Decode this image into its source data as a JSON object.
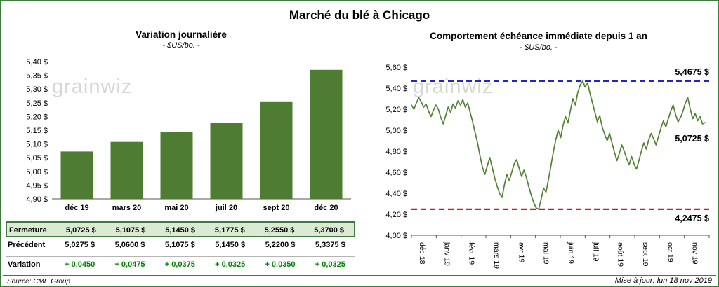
{
  "header": {
    "title": "Marché du blé à Chicago"
  },
  "footer": {
    "source": "Source: CME Group",
    "updated": "Mise à jour: lun 18 nov 2019"
  },
  "watermark": "grainwiz",
  "colors": {
    "frame_green": "#3e7b3e",
    "bar_green": "#4e7c32",
    "line_green": "#538135",
    "high_blue": "#2323cd",
    "low_red": "#e91212",
    "variation_green": "#008000",
    "fermeture_row_bg": "#dce9d3",
    "watermark_gray": "#a9b2a9"
  },
  "chart_data": [
    {
      "type": "bar",
      "title": "Variation  journalière",
      "subtitle": "- $US/bo. -",
      "categories": [
        "déc 19",
        "mars 20",
        "mai 20",
        "juil 20",
        "sept 20",
        "déc 20"
      ],
      "values": [
        5.0725,
        5.1075,
        5.145,
        5.1775,
        5.255,
        5.37
      ],
      "ylim": [
        4.9,
        5.4
      ],
      "ytick_step": 0.05,
      "ytick_labels": [
        "5,40 $",
        "5,35 $",
        "5,30 $",
        "5,25 $",
        "5,20 $",
        "5,15 $",
        "5,10 $",
        "5,05 $",
        "5,00 $",
        "4,95 $",
        "4,90 $"
      ],
      "grid": false,
      "legend": false
    },
    {
      "type": "line",
      "title": "Comportement  échéance  immédiate  depuis 1 an",
      "subtitle": "- $US/bo. -",
      "x_labels": [
        "déc 18",
        "janv 19",
        "févr 19",
        "mars 19",
        "avr 19",
        "mai 19",
        "juin 19",
        "juil 19",
        "août 19",
        "sept 19",
        "oct 19",
        "nov 19"
      ],
      "ylim": [
        4.0,
        5.6
      ],
      "ytick_labels": [
        "5,60 $",
        "5,40 $",
        "5,20 $",
        "5,00 $",
        "4,80 $",
        "4,60 $",
        "4,40 $",
        "4,20 $",
        "4,00 $"
      ],
      "high_line": {
        "value": 5.4675,
        "label": "5,4675 $"
      },
      "low_line": {
        "value": 4.2475,
        "label": "4,2475 $"
      },
      "last_value": 5.0725,
      "last_label": "5,0725 $",
      "grid": false,
      "legend": false,
      "values": [
        5.24,
        5.2,
        5.26,
        5.31,
        5.27,
        5.22,
        5.25,
        5.18,
        5.13,
        5.19,
        5.24,
        5.2,
        5.12,
        5.06,
        5.14,
        5.22,
        5.17,
        5.25,
        5.21,
        5.28,
        5.24,
        5.29,
        5.22,
        5.26,
        5.17,
        5.08,
        4.98,
        4.88,
        4.76,
        4.65,
        4.58,
        4.66,
        4.74,
        4.65,
        4.55,
        4.47,
        4.4,
        4.36,
        4.48,
        4.58,
        4.52,
        4.6,
        4.68,
        4.72,
        4.64,
        4.56,
        4.62,
        4.55,
        4.46,
        4.38,
        4.31,
        4.26,
        4.2475,
        4.34,
        4.45,
        4.41,
        4.53,
        4.66,
        4.79,
        4.91,
        5.0,
        4.93,
        5.05,
        5.13,
        5.07,
        5.19,
        5.3,
        5.24,
        5.36,
        5.43,
        5.4675,
        5.41,
        5.45,
        5.35,
        5.26,
        5.17,
        5.08,
        5.14,
        5.03,
        4.96,
        4.9,
        4.97,
        4.88,
        4.79,
        4.71,
        4.78,
        4.86,
        4.8,
        4.73,
        4.67,
        4.75,
        4.68,
        4.63,
        4.71,
        4.8,
        4.88,
        4.82,
        4.91,
        4.97,
        4.92,
        4.86,
        4.94,
        5.02,
        5.09,
        5.03,
        5.11,
        5.18,
        5.24,
        5.15,
        5.08,
        5.12,
        5.18,
        5.26,
        5.31,
        5.2,
        5.11,
        5.16,
        5.09,
        5.13,
        5.06,
        5.0725
      ]
    }
  ],
  "table": {
    "rows": [
      {
        "label": "Fermeture",
        "values": [
          "5,0725  $",
          "5,1075  $",
          "5,1450  $",
          "5,1775  $",
          "5,2550  $",
          "5,3700  $"
        ]
      },
      {
        "label": "Précédent",
        "values": [
          "5,0275  $",
          "5,0600  $",
          "5,1075  $",
          "5,1450  $",
          "5,2200  $",
          "5,3375  $"
        ]
      },
      {
        "label": "Variation",
        "values": [
          "+ 0,0450",
          "+ 0,0475",
          "+ 0,0375",
          "+ 0,0325",
          "+ 0,0350",
          "+ 0,0325"
        ]
      }
    ]
  }
}
